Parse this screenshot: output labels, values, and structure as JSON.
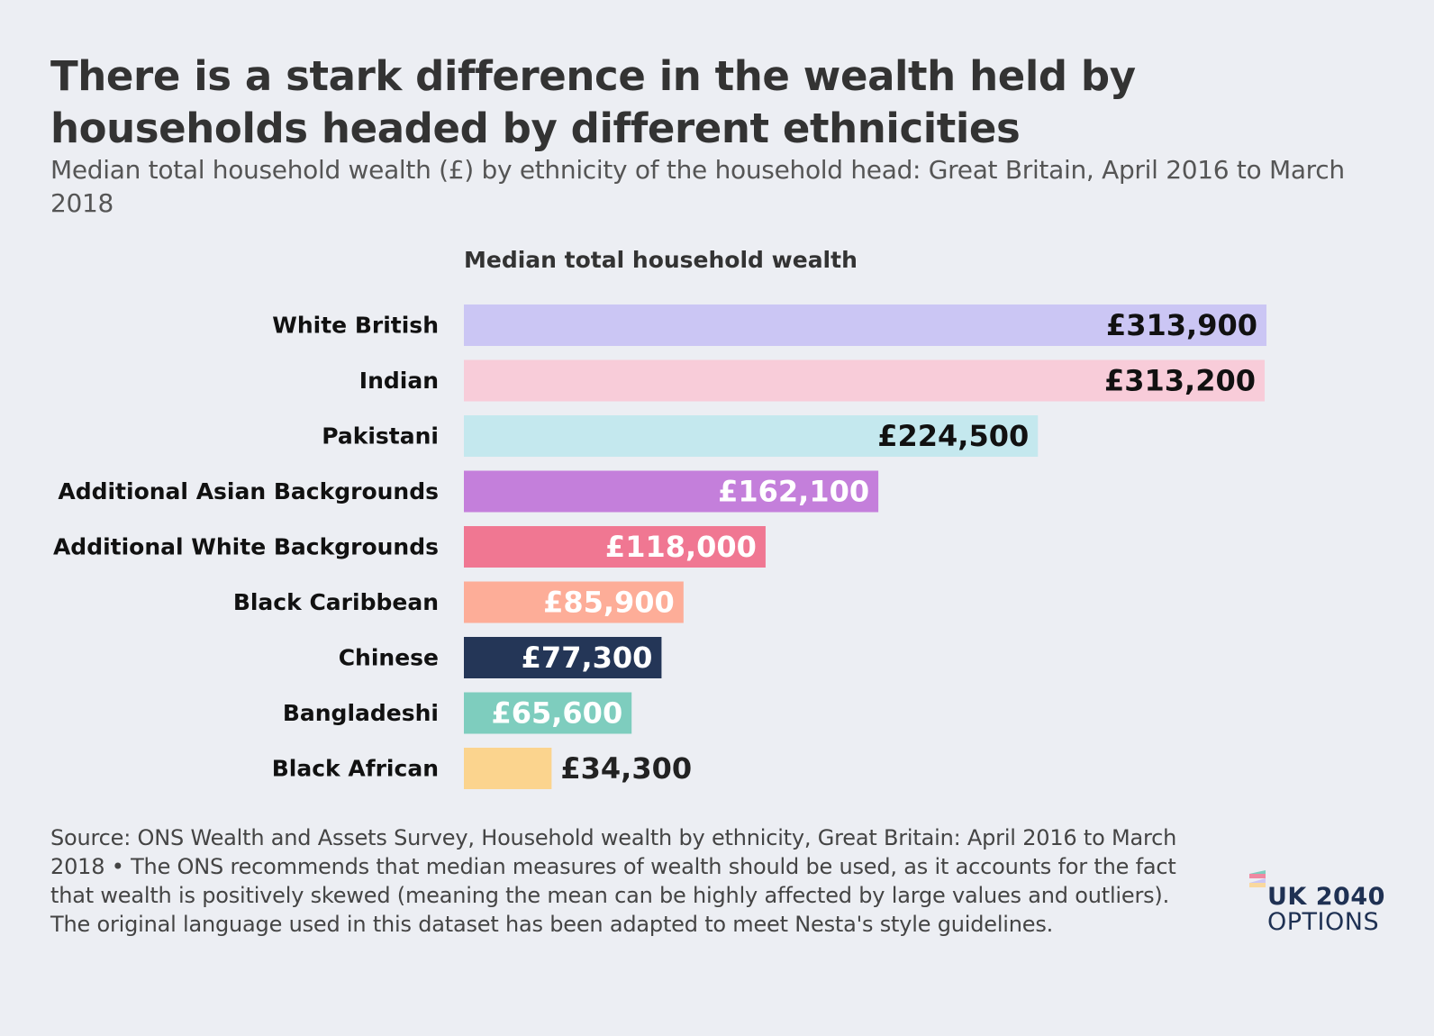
{
  "title": "There is a stark difference in the wealth held by households headed by different ethnicities",
  "subtitle": "Median total household wealth (£) by ethnicity of the household head: Great Britain, April 2016 to March 2018",
  "chart_data": {
    "type": "bar",
    "orientation": "horizontal",
    "value_axis_title": "Median total household wealth",
    "categories": [
      "White British",
      "Indian",
      "Pakistani",
      "Additional Asian Backgrounds",
      "Additional White Backgrounds",
      "Black Caribbean",
      "Chinese",
      "Bangladeshi",
      "Black African"
    ],
    "values": [
      313900,
      313200,
      224500,
      162100,
      118000,
      85900,
      77300,
      65600,
      34300
    ],
    "value_labels": [
      "£313,900",
      "£313,200",
      "£224,500",
      "£162,100",
      "£118,000",
      "£85,900",
      "£77,300",
      "£65,600",
      "£34,300"
    ],
    "colors": [
      "#cbc6f4",
      "#f8ccd9",
      "#c4e8ee",
      "#c47fdb",
      "#f07792",
      "#fdad98",
      "#243657",
      "#7ecdbe",
      "#fbd48e"
    ],
    "label_colors": [
      "#111111",
      "#111111",
      "#111111",
      "#ffffff",
      "#ffffff",
      "#ffffff",
      "#ffffff",
      "#ffffff",
      "#222222"
    ],
    "label_inside": [
      true,
      true,
      true,
      true,
      true,
      true,
      true,
      true,
      false
    ],
    "grid": false,
    "legend": "none"
  },
  "source": {
    "line1": "Source: ONS Wealth and Assets Survey, Household wealth by ethnicity, Great Britain: April 2016 to March 2018 • The ONS recommends that median measures of wealth should be used, as it accounts for the fact that wealth is positively skewed (meaning the mean can be highly affected by large values and outliers).",
    "line2": "The original language used in this dataset has been adapted to meet Nesta's style guidelines."
  },
  "logo": {
    "line1": "UK 2040",
    "line2": "OPTIONS"
  },
  "colors": {
    "background": "#eceef3",
    "logo": "#1f3153"
  }
}
